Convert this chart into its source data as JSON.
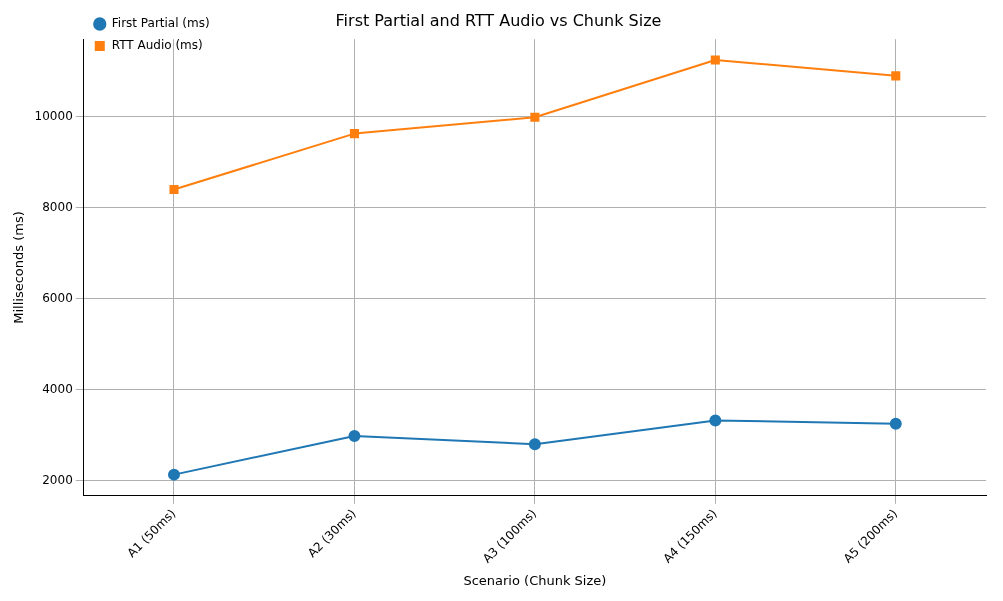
{
  "chart_data": {
    "type": "line",
    "title": "First Partial and RTT Audio vs Chunk Size",
    "xlabel": "Scenario (Chunk Size)",
    "ylabel": "Milliseconds (ms)",
    "categories": [
      "A1 (50ms)",
      "A2 (30ms)",
      "A3 (100ms)",
      "A4 (150ms)",
      "A5 (200ms)"
    ],
    "series": [
      {
        "name": "First Partial (ms)",
        "color": "#1f77b4",
        "marker": "circle",
        "values": [
          2130,
          2980,
          2800,
          3320,
          3250
        ]
      },
      {
        "name": "RTT Audio (ms)",
        "color": "#ff7f0e",
        "marker": "square",
        "values": [
          8400,
          9630,
          9990,
          11250,
          10900
        ]
      }
    ],
    "ylim": [
      1664,
      11706
    ],
    "yticks": [
      2000,
      4000,
      6000,
      8000,
      10000
    ],
    "grid": true,
    "legend": "top left",
    "line_style": "solid"
  }
}
